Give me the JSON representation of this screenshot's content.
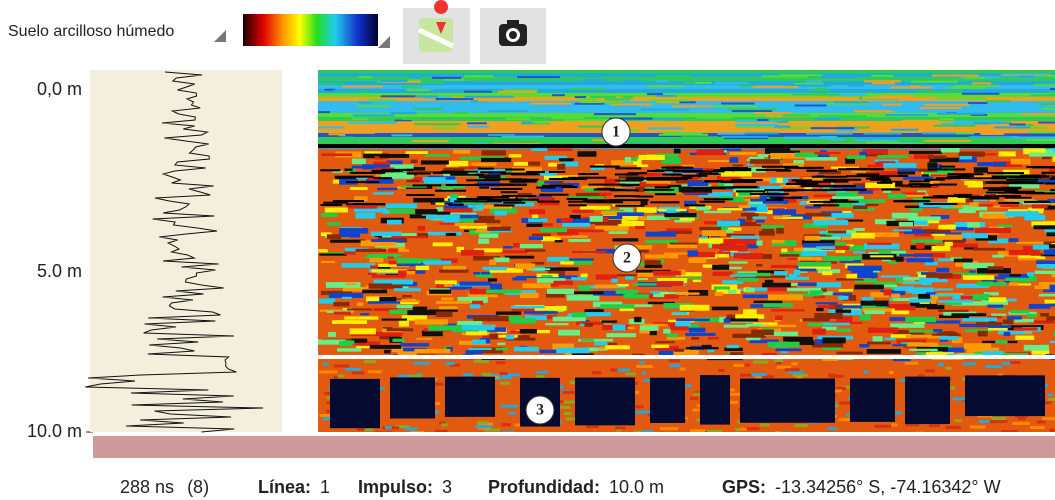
{
  "toolbar": {
    "soil_type": "Suelo arcilloso húmedo"
  },
  "depth_axis": {
    "labels": [
      "0,0 m",
      "5.0 m",
      "10.0 m"
    ]
  },
  "markers": [
    "1",
    "2",
    "3"
  ],
  "status": {
    "time": "288 ns",
    "count": "(8)",
    "line_label": "Línea:",
    "line": "1",
    "impulse_label": "Impulso:",
    "impulse": "3",
    "depth_label": "Profundidad:",
    "depth": "10.0 m",
    "gps_label": "GPS:",
    "gps": "-13.34256° S, -74.16342° W"
  }
}
